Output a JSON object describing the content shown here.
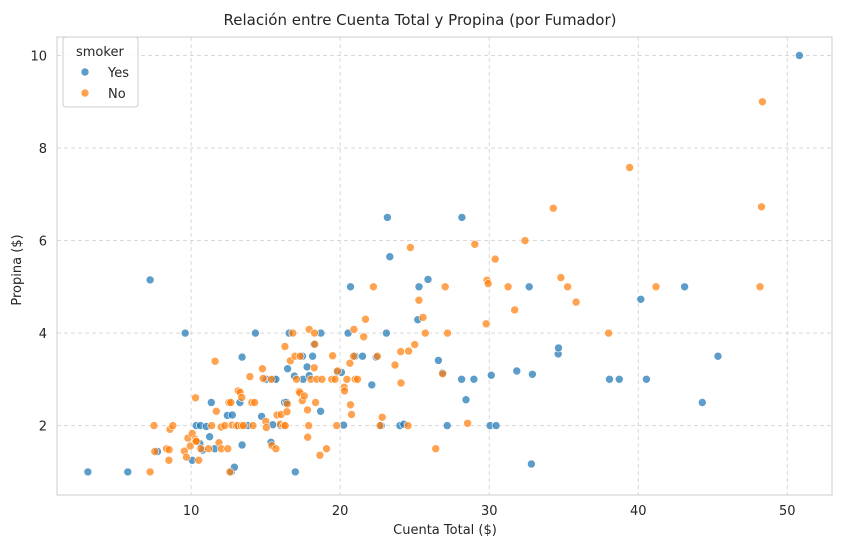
{
  "chart_data": {
    "type": "scatter",
    "title": "Relación entre Cuenta Total y Propina (por Fumador)",
    "xlabel": "Cuenta Total ($)",
    "ylabel": "Propina ($)",
    "xlim": [
      1,
      53
    ],
    "ylim": [
      0.5,
      10.4
    ],
    "xticks": [
      10,
      20,
      30,
      40,
      50
    ],
    "yticks": [
      2,
      4,
      6,
      8,
      10
    ],
    "grid": true,
    "legend": {
      "title": "smoker",
      "position": "top-left"
    },
    "series": [
      {
        "name": "Yes",
        "color": "#1f77b4",
        "points": [
          [
            3.07,
            1.0
          ],
          [
            5.75,
            1.0
          ],
          [
            7.25,
            5.15
          ],
          [
            7.74,
            1.44
          ],
          [
            9.6,
            4.0
          ],
          [
            10.07,
            1.25
          ],
          [
            10.34,
            2.0
          ],
          [
            10.59,
            1.61
          ],
          [
            10.63,
            2.0
          ],
          [
            10.77,
            1.47
          ],
          [
            11.02,
            1.98
          ],
          [
            11.24,
            1.76
          ],
          [
            11.35,
            2.5
          ],
          [
            11.59,
            1.5
          ],
          [
            12.43,
            2.22
          ],
          [
            12.69,
            1.0
          ],
          [
            12.76,
            2.23
          ],
          [
            12.9,
            1.1
          ],
          [
            13.0,
            2.0
          ],
          [
            13.27,
            2.5
          ],
          [
            13.42,
            3.48
          ],
          [
            13.42,
            1.58
          ],
          [
            13.81,
            2.0
          ],
          [
            14.31,
            4.0
          ],
          [
            14.73,
            2.2
          ],
          [
            15.36,
            1.64
          ],
          [
            15.04,
            3.0
          ],
          [
            15.48,
            2.02
          ],
          [
            15.53,
            3.0
          ],
          [
            15.69,
            3.0
          ],
          [
            16.0,
            2.0
          ],
          [
            16.27,
            2.5
          ],
          [
            16.4,
            2.5
          ],
          [
            16.47,
            3.23
          ],
          [
            16.58,
            4.0
          ],
          [
            16.93,
            3.07
          ],
          [
            16.99,
            1.0
          ],
          [
            17.47,
            3.5
          ],
          [
            17.51,
            3.0
          ],
          [
            17.78,
            3.27
          ],
          [
            17.92,
            3.08
          ],
          [
            18.15,
            3.5
          ],
          [
            18.24,
            3.76
          ],
          [
            18.71,
            4.0
          ],
          [
            18.69,
            2.31
          ],
          [
            19.81,
            3.16
          ],
          [
            20.08,
            3.15
          ],
          [
            20.23,
            2.01
          ],
          [
            20.53,
            4.0
          ],
          [
            20.69,
            5.0
          ],
          [
            21.01,
            3.5
          ],
          [
            21.5,
            3.5
          ],
          [
            22.12,
            2.88
          ],
          [
            22.42,
            3.48
          ],
          [
            22.76,
            2.0
          ],
          [
            23.1,
            4.0
          ],
          [
            23.17,
            6.5
          ],
          [
            23.33,
            5.65
          ],
          [
            24.01,
            2.0
          ],
          [
            24.27,
            2.03
          ],
          [
            25.21,
            4.29
          ],
          [
            25.29,
            5.0
          ],
          [
            25.89,
            5.16
          ],
          [
            26.59,
            3.41
          ],
          [
            26.86,
            3.14
          ],
          [
            27.18,
            2.0
          ],
          [
            28.15,
            3.0
          ],
          [
            28.44,
            2.56
          ],
          [
            28.17,
            6.5
          ],
          [
            28.97,
            3.0
          ],
          [
            30.06,
            2.0
          ],
          [
            30.14,
            3.09
          ],
          [
            30.46,
            2.0
          ],
          [
            31.85,
            3.18
          ],
          [
            32.68,
            5.0
          ],
          [
            32.83,
            1.17
          ],
          [
            32.9,
            3.11
          ],
          [
            34.63,
            3.55
          ],
          [
            34.65,
            3.68
          ],
          [
            38.07,
            3.0
          ],
          [
            38.73,
            3.0
          ],
          [
            40.17,
            4.73
          ],
          [
            40.55,
            3.0
          ],
          [
            43.11,
            5.0
          ],
          [
            44.3,
            2.5
          ],
          [
            45.35,
            3.5
          ],
          [
            50.81,
            10.0
          ]
        ]
      },
      {
        "name": "No",
        "color": "#ff7f0e",
        "points": [
          [
            7.25,
            1.0
          ],
          [
            7.51,
            2.0
          ],
          [
            7.56,
            1.44
          ],
          [
            8.35,
            1.5
          ],
          [
            8.51,
            1.25
          ],
          [
            8.52,
            1.48
          ],
          [
            8.58,
            1.92
          ],
          [
            8.77,
            2.0
          ],
          [
            9.55,
            1.45
          ],
          [
            9.68,
            1.32
          ],
          [
            9.78,
            1.73
          ],
          [
            9.94,
            1.56
          ],
          [
            10.07,
            1.83
          ],
          [
            10.27,
            1.71
          ],
          [
            10.29,
            2.6
          ],
          [
            10.33,
            1.67
          ],
          [
            10.34,
            1.66
          ],
          [
            10.51,
            1.25
          ],
          [
            10.65,
            1.5
          ],
          [
            11.17,
            1.5
          ],
          [
            11.38,
            2.0
          ],
          [
            11.61,
            3.39
          ],
          [
            11.69,
            2.31
          ],
          [
            11.87,
            1.63
          ],
          [
            12.02,
            1.97
          ],
          [
            12.03,
            1.5
          ],
          [
            12.26,
            2.0
          ],
          [
            12.46,
            1.5
          ],
          [
            12.54,
            2.5
          ],
          [
            12.6,
            1.0
          ],
          [
            12.66,
            2.5
          ],
          [
            12.74,
            2.01
          ],
          [
            13.03,
            2.0
          ],
          [
            13.13,
            2.0
          ],
          [
            13.16,
            2.75
          ],
          [
            13.28,
            2.72
          ],
          [
            13.37,
            2.0
          ],
          [
            13.39,
            2.61
          ],
          [
            13.51,
            2.0
          ],
          [
            13.94,
            3.06
          ],
          [
            14.07,
            2.5
          ],
          [
            14.15,
            2.0
          ],
          [
            14.26,
            2.5
          ],
          [
            14.78,
            3.23
          ],
          [
            14.83,
            3.02
          ],
          [
            15.01,
            2.09
          ],
          [
            15.04,
            1.96
          ],
          [
            15.38,
            3.0
          ],
          [
            15.42,
            1.57
          ],
          [
            15.69,
            1.5
          ],
          [
            15.77,
            2.23
          ],
          [
            15.98,
            2.03
          ],
          [
            16.04,
            2.24
          ],
          [
            16.21,
            2.0
          ],
          [
            16.29,
            3.71
          ],
          [
            16.31,
            2.0
          ],
          [
            16.43,
            2.3
          ],
          [
            16.45,
            2.47
          ],
          [
            16.66,
            3.4
          ],
          [
            16.82,
            4.0
          ],
          [
            16.97,
            3.5
          ],
          [
            17.07,
            3.0
          ],
          [
            17.26,
            2.74
          ],
          [
            17.29,
            2.71
          ],
          [
            17.31,
            3.5
          ],
          [
            17.46,
            2.54
          ],
          [
            17.59,
            2.64
          ],
          [
            17.81,
            2.34
          ],
          [
            17.82,
            1.75
          ],
          [
            17.89,
            2.0
          ],
          [
            17.92,
            4.08
          ],
          [
            18.04,
            3.0
          ],
          [
            18.26,
            3.25
          ],
          [
            18.28,
            4.0
          ],
          [
            18.29,
            3.76
          ],
          [
            18.35,
            2.5
          ],
          [
            18.43,
            3.0
          ],
          [
            18.64,
            1.36
          ],
          [
            18.78,
            3.0
          ],
          [
            19.08,
            1.5
          ],
          [
            19.44,
            3.0
          ],
          [
            19.49,
            3.51
          ],
          [
            19.65,
            3.0
          ],
          [
            19.77,
            2.0
          ],
          [
            19.82,
            3.18
          ],
          [
            20.27,
            2.83
          ],
          [
            20.29,
            2.75
          ],
          [
            20.45,
            3.0
          ],
          [
            20.65,
            3.35
          ],
          [
            20.69,
            2.45
          ],
          [
            20.76,
            2.24
          ],
          [
            20.9,
            3.5
          ],
          [
            20.92,
            4.08
          ],
          [
            21.01,
            3.0
          ],
          [
            21.16,
            3.0
          ],
          [
            21.58,
            3.92
          ],
          [
            21.7,
            4.3
          ],
          [
            22.23,
            5.0
          ],
          [
            22.49,
            3.5
          ],
          [
            22.67,
            2.0
          ],
          [
            22.82,
            2.18
          ],
          [
            23.68,
            3.31
          ],
          [
            24.06,
            3.6
          ],
          [
            24.08,
            2.92
          ],
          [
            24.55,
            2.0
          ],
          [
            24.59,
            3.61
          ],
          [
            24.71,
            5.85
          ],
          [
            25.0,
            3.75
          ],
          [
            25.28,
            4.71
          ],
          [
            25.56,
            4.34
          ],
          [
            25.71,
            4.0
          ],
          [
            26.41,
            1.5
          ],
          [
            26.88,
            3.12
          ],
          [
            27.05,
            5.0
          ],
          [
            27.2,
            4.0
          ],
          [
            28.55,
            2.05
          ],
          [
            29.03,
            5.92
          ],
          [
            29.8,
            4.2
          ],
          [
            29.85,
            5.14
          ],
          [
            29.93,
            5.07
          ],
          [
            30.4,
            5.6
          ],
          [
            31.27,
            5.0
          ],
          [
            31.71,
            4.5
          ],
          [
            32.4,
            6.0
          ],
          [
            34.3,
            6.7
          ],
          [
            34.81,
            5.2
          ],
          [
            35.26,
            5.0
          ],
          [
            35.83,
            4.67
          ],
          [
            38.01,
            4.0
          ],
          [
            39.42,
            7.58
          ],
          [
            41.19,
            5.0
          ],
          [
            48.17,
            5.0
          ],
          [
            48.27,
            6.73
          ],
          [
            48.33,
            9.0
          ]
        ]
      }
    ]
  }
}
